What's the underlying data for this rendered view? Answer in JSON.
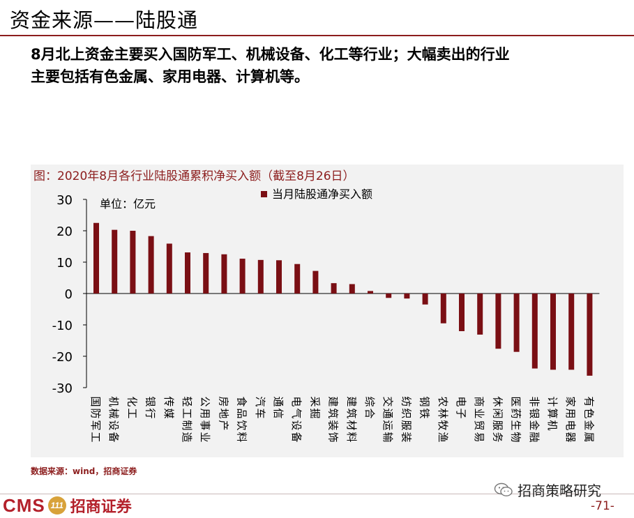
{
  "header": {
    "title": "资金来源——陆股通"
  },
  "summary": {
    "line1": "8月北上资金主要买入国防军工、机械设备、化工等行业；大幅卖出的行业",
    "line2": "主要包括有色金属、家用电器、计算机等。"
  },
  "chart_data": {
    "type": "bar",
    "title": "图：2020年8月各行业陆股通累积净买入额（截至8月26日）",
    "unit": "单位：亿元",
    "legend": "当月陆股通净买入额",
    "legend_position": "top-center",
    "color": "#7a0f14",
    "ylim": [
      -30,
      30
    ],
    "yticks": [
      30,
      20,
      10,
      0,
      -10,
      -20,
      -30
    ],
    "categories": [
      "国防军工",
      "机械设备",
      "化工",
      "银行",
      "传媒",
      "轻工制造",
      "公用事业",
      "房地产",
      "食品饮料",
      "汽车",
      "通信",
      "电气设备",
      "采掘",
      "建筑装饰",
      "建筑材料",
      "综合",
      "交通运输",
      "纺织服装",
      "钢铁",
      "农林牧渔",
      "电子",
      "商业贸易",
      "休闲服务",
      "医药生物",
      "非银金融",
      "计算机",
      "家用电器",
      "有色金属"
    ],
    "values": [
      22.5,
      20.3,
      20.0,
      18.3,
      15.9,
      13.1,
      12.9,
      12.5,
      11.1,
      10.7,
      10.6,
      9.4,
      7.2,
      3.3,
      3.0,
      0.8,
      -1.4,
      -1.6,
      -3.5,
      -9.5,
      -12.0,
      -13.1,
      -17.6,
      -18.6,
      -23.9,
      -24.3,
      -24.3,
      -26.2
    ]
  },
  "source": "数据来源：wind，招商证券",
  "footer": {
    "logo_text": "CMS",
    "logo_mark": "111",
    "logo_cn": "招商证券",
    "wechat": "招商策略研究",
    "page": "-71-"
  }
}
